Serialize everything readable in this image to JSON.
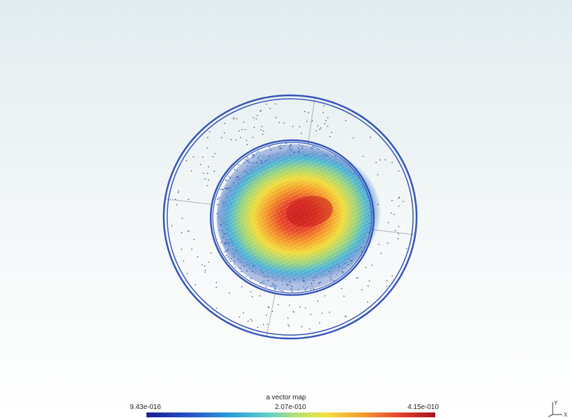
{
  "legend": {
    "title": "a vector map",
    "min_label": "9.43e-016",
    "mid_label": "2.07e-010",
    "max_label": "4.15e-010",
    "colormap": [
      "#1a1f8c",
      "#2450c8",
      "#2aa0d8",
      "#5fd0c8",
      "#b8e070",
      "#f3e040",
      "#f7a030",
      "#e3402a",
      "#a4121c"
    ]
  },
  "axes_triad": {
    "y_label": "Y",
    "x_label": "X"
  },
  "colors": {
    "ring": "#3554b8",
    "divider": "#9aa0a8",
    "background_top": "#e2ecef",
    "background_bottom": "#ffffff"
  }
}
